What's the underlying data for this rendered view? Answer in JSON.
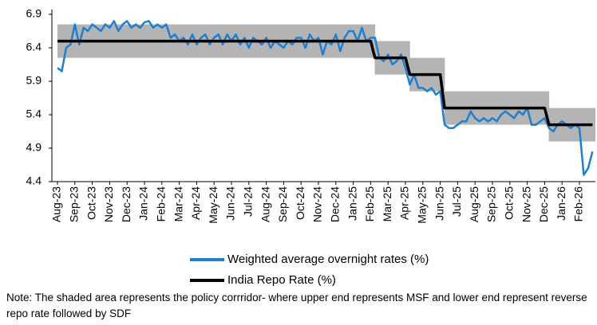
{
  "chart_data": {
    "type": "line",
    "categories": [
      "Aug-23",
      null,
      null,
      null,
      "Sep-23",
      null,
      null,
      null,
      "Oct-23",
      null,
      null,
      null,
      "Nov-23",
      null,
      null,
      null,
      "Dec-23",
      null,
      null,
      null,
      "Jan-24",
      null,
      null,
      null,
      "Feb-24",
      null,
      null,
      null,
      "Mar-24",
      null,
      null,
      null,
      "Apr-24",
      null,
      null,
      null,
      "May-24",
      null,
      null,
      null,
      "Jun-24",
      null,
      null,
      null,
      "Jul-24",
      null,
      null,
      null,
      "Aug-24",
      null,
      null,
      null,
      "Sep-24",
      null,
      null,
      null,
      "Oct-24",
      null,
      null,
      null,
      "Nov-24",
      null,
      null,
      null,
      "Dec-24",
      null,
      null,
      null,
      "Jan-25",
      null,
      null,
      null,
      "Feb-25",
      null,
      null,
      null,
      "Mar-25",
      null,
      null,
      null,
      "Apr-25",
      null,
      null,
      null,
      "May-25",
      null,
      null,
      null,
      "Jun-25",
      null,
      null,
      null,
      "Jul-25",
      null,
      null,
      null,
      "Aug-25",
      null,
      null,
      null,
      "Sep-25",
      null,
      null,
      null,
      "Oct-25",
      null,
      null,
      null,
      "Nov-25",
      null,
      null,
      null,
      "Dec-25",
      null,
      null,
      null,
      "Jan-26",
      null,
      null,
      null,
      "Feb-26",
      null,
      null,
      null
    ],
    "series": [
      {
        "name": "Weighted average overnight rates (%)",
        "color": "#1f7fd0",
        "values": [
          6.1,
          6.05,
          6.4,
          6.45,
          6.75,
          6.45,
          6.7,
          6.65,
          6.75,
          6.7,
          6.65,
          6.75,
          6.7,
          6.8,
          6.65,
          6.75,
          6.8,
          6.7,
          6.75,
          6.7,
          6.78,
          6.8,
          6.7,
          6.75,
          6.7,
          6.75,
          6.55,
          6.6,
          6.5,
          6.55,
          6.45,
          6.6,
          6.45,
          6.55,
          6.6,
          6.45,
          6.55,
          6.6,
          6.45,
          6.6,
          6.5,
          6.6,
          6.45,
          6.55,
          6.4,
          6.55,
          6.5,
          6.45,
          6.55,
          6.4,
          6.5,
          6.45,
          6.4,
          6.5,
          6.45,
          6.55,
          6.55,
          6.4,
          6.6,
          6.5,
          6.55,
          6.3,
          6.5,
          6.45,
          6.6,
          6.35,
          6.55,
          6.65,
          6.65,
          6.5,
          6.7,
          6.5,
          6.55,
          6.55,
          6.25,
          6.2,
          6.3,
          6.15,
          6.2,
          6.3,
          6.1,
          5.85,
          6.0,
          5.8,
          5.8,
          5.75,
          5.8,
          5.7,
          5.75,
          5.25,
          5.2,
          5.2,
          5.25,
          5.3,
          5.3,
          5.45,
          5.35,
          5.3,
          5.35,
          5.3,
          5.35,
          5.3,
          5.4,
          5.45,
          5.4,
          5.35,
          5.45,
          5.4,
          5.5,
          5.25,
          5.25,
          5.3,
          5.35,
          5.2,
          5.15,
          5.25,
          5.3,
          5.25,
          5.2,
          5.25,
          5.2,
          4.5,
          4.6,
          4.85
        ]
      },
      {
        "name": "India Repo Rate (%)",
        "color": "#000000",
        "values": [
          6.5,
          6.5,
          6.5,
          6.5,
          6.5,
          6.5,
          6.5,
          6.5,
          6.5,
          6.5,
          6.5,
          6.5,
          6.5,
          6.5,
          6.5,
          6.5,
          6.5,
          6.5,
          6.5,
          6.5,
          6.5,
          6.5,
          6.5,
          6.5,
          6.5,
          6.5,
          6.5,
          6.5,
          6.5,
          6.5,
          6.5,
          6.5,
          6.5,
          6.5,
          6.5,
          6.5,
          6.5,
          6.5,
          6.5,
          6.5,
          6.5,
          6.5,
          6.5,
          6.5,
          6.5,
          6.5,
          6.5,
          6.5,
          6.5,
          6.5,
          6.5,
          6.5,
          6.5,
          6.5,
          6.5,
          6.5,
          6.5,
          6.5,
          6.5,
          6.5,
          6.5,
          6.5,
          6.5,
          6.5,
          6.5,
          6.5,
          6.5,
          6.5,
          6.5,
          6.5,
          6.5,
          6.5,
          6.5,
          6.25,
          6.25,
          6.25,
          6.25,
          6.25,
          6.25,
          6.25,
          6.25,
          6.0,
          6.0,
          6.0,
          6.0,
          6.0,
          6.0,
          6.0,
          6.0,
          5.5,
          5.5,
          5.5,
          5.5,
          5.5,
          5.5,
          5.5,
          5.5,
          5.5,
          5.5,
          5.5,
          5.5,
          5.5,
          5.5,
          5.5,
          5.5,
          5.5,
          5.5,
          5.5,
          5.5,
          5.5,
          5.5,
          5.5,
          5.5,
          5.25,
          5.25,
          5.25,
          5.25,
          5.25,
          5.25,
          5.25,
          5.25,
          5.25,
          5.25,
          5.25
        ]
      }
    ],
    "band": {
      "color": "#b4b4b4",
      "upper": [
        6.75,
        6.75,
        6.75,
        6.75,
        6.75,
        6.75,
        6.75,
        6.75,
        6.75,
        6.75,
        6.75,
        6.75,
        6.75,
        6.75,
        6.75,
        6.75,
        6.75,
        6.75,
        6.75,
        6.75,
        6.75,
        6.75,
        6.75,
        6.75,
        6.75,
        6.75,
        6.75,
        6.75,
        6.75,
        6.75,
        6.75,
        6.75,
        6.75,
        6.75,
        6.75,
        6.75,
        6.75,
        6.75,
        6.75,
        6.75,
        6.75,
        6.75,
        6.75,
        6.75,
        6.75,
        6.75,
        6.75,
        6.75,
        6.75,
        6.75,
        6.75,
        6.75,
        6.75,
        6.75,
        6.75,
        6.75,
        6.75,
        6.75,
        6.75,
        6.75,
        6.75,
        6.75,
        6.75,
        6.75,
        6.75,
        6.75,
        6.75,
        6.75,
        6.75,
        6.75,
        6.75,
        6.75,
        6.75,
        6.5,
        6.5,
        6.5,
        6.5,
        6.5,
        6.5,
        6.5,
        6.5,
        6.25,
        6.25,
        6.25,
        6.25,
        6.25,
        6.25,
        6.25,
        6.25,
        5.75,
        5.75,
        5.75,
        5.75,
        5.75,
        5.75,
        5.75,
        5.75,
        5.75,
        5.75,
        5.75,
        5.75,
        5.75,
        5.75,
        5.75,
        5.75,
        5.75,
        5.75,
        5.75,
        5.75,
        5.75,
        5.75,
        5.75,
        5.75,
        5.5,
        5.5,
        5.5,
        5.5,
        5.5,
        5.5,
        5.5,
        5.5,
        5.5,
        5.5,
        5.5
      ],
      "lower": [
        6.25,
        6.25,
        6.25,
        6.25,
        6.25,
        6.25,
        6.25,
        6.25,
        6.25,
        6.25,
        6.25,
        6.25,
        6.25,
        6.25,
        6.25,
        6.25,
        6.25,
        6.25,
        6.25,
        6.25,
        6.25,
        6.25,
        6.25,
        6.25,
        6.25,
        6.25,
        6.25,
        6.25,
        6.25,
        6.25,
        6.25,
        6.25,
        6.25,
        6.25,
        6.25,
        6.25,
        6.25,
        6.25,
        6.25,
        6.25,
        6.25,
        6.25,
        6.25,
        6.25,
        6.25,
        6.25,
        6.25,
        6.25,
        6.25,
        6.25,
        6.25,
        6.25,
        6.25,
        6.25,
        6.25,
        6.25,
        6.25,
        6.25,
        6.25,
        6.25,
        6.25,
        6.25,
        6.25,
        6.25,
        6.25,
        6.25,
        6.25,
        6.25,
        6.25,
        6.25,
        6.25,
        6.25,
        6.25,
        6.0,
        6.0,
        6.0,
        6.0,
        6.0,
        6.0,
        6.0,
        6.0,
        5.75,
        5.75,
        5.75,
        5.75,
        5.75,
        5.75,
        5.75,
        5.75,
        5.25,
        5.25,
        5.25,
        5.25,
        5.25,
        5.25,
        5.25,
        5.25,
        5.25,
        5.25,
        5.25,
        5.25,
        5.25,
        5.25,
        5.25,
        5.25,
        5.25,
        5.25,
        5.25,
        5.25,
        5.25,
        5.25,
        5.25,
        5.25,
        5.0,
        5.0,
        5.0,
        5.0,
        5.0,
        5.0,
        5.0,
        5.0,
        5.0,
        5.0,
        5.0
      ]
    },
    "ylim": [
      4.4,
      6.9
    ],
    "yticks": [
      4.4,
      4.9,
      5.4,
      5.9,
      6.4,
      6.9
    ],
    "note": "Note: The shaded area represents the policy corrridor- where upper end represents MSF and lower end represent reverse repo rate followed by SDF"
  }
}
